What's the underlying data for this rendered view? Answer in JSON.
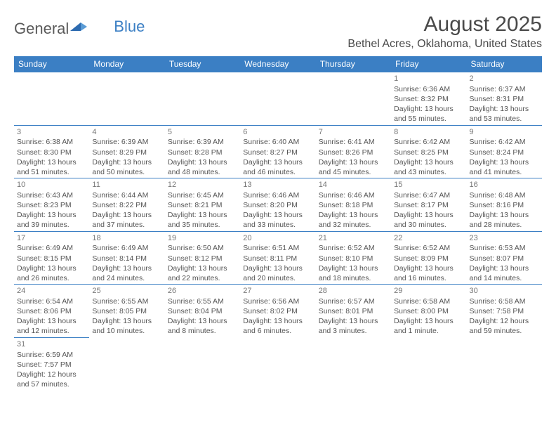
{
  "logo": {
    "general": "General",
    "blue": "Blue"
  },
  "title": "August 2025",
  "location": "Bethel Acres, Oklahoma, United States",
  "colors": {
    "header_bg": "#3b7fc4",
    "header_text": "#ffffff",
    "border": "#3b7fc4",
    "text": "#555555",
    "title_text": "#4a4a4a"
  },
  "weekdays": [
    "Sunday",
    "Monday",
    "Tuesday",
    "Wednesday",
    "Thursday",
    "Friday",
    "Saturday"
  ],
  "weeks": [
    [
      null,
      null,
      null,
      null,
      null,
      {
        "d": "1",
        "rise": "Sunrise: 6:36 AM",
        "set": "Sunset: 8:32 PM",
        "dl1": "Daylight: 13 hours",
        "dl2": "and 55 minutes."
      },
      {
        "d": "2",
        "rise": "Sunrise: 6:37 AM",
        "set": "Sunset: 8:31 PM",
        "dl1": "Daylight: 13 hours",
        "dl2": "and 53 minutes."
      }
    ],
    [
      {
        "d": "3",
        "rise": "Sunrise: 6:38 AM",
        "set": "Sunset: 8:30 PM",
        "dl1": "Daylight: 13 hours",
        "dl2": "and 51 minutes."
      },
      {
        "d": "4",
        "rise": "Sunrise: 6:39 AM",
        "set": "Sunset: 8:29 PM",
        "dl1": "Daylight: 13 hours",
        "dl2": "and 50 minutes."
      },
      {
        "d": "5",
        "rise": "Sunrise: 6:39 AM",
        "set": "Sunset: 8:28 PM",
        "dl1": "Daylight: 13 hours",
        "dl2": "and 48 minutes."
      },
      {
        "d": "6",
        "rise": "Sunrise: 6:40 AM",
        "set": "Sunset: 8:27 PM",
        "dl1": "Daylight: 13 hours",
        "dl2": "and 46 minutes."
      },
      {
        "d": "7",
        "rise": "Sunrise: 6:41 AM",
        "set": "Sunset: 8:26 PM",
        "dl1": "Daylight: 13 hours",
        "dl2": "and 45 minutes."
      },
      {
        "d": "8",
        "rise": "Sunrise: 6:42 AM",
        "set": "Sunset: 8:25 PM",
        "dl1": "Daylight: 13 hours",
        "dl2": "and 43 minutes."
      },
      {
        "d": "9",
        "rise": "Sunrise: 6:42 AM",
        "set": "Sunset: 8:24 PM",
        "dl1": "Daylight: 13 hours",
        "dl2": "and 41 minutes."
      }
    ],
    [
      {
        "d": "10",
        "rise": "Sunrise: 6:43 AM",
        "set": "Sunset: 8:23 PM",
        "dl1": "Daylight: 13 hours",
        "dl2": "and 39 minutes."
      },
      {
        "d": "11",
        "rise": "Sunrise: 6:44 AM",
        "set": "Sunset: 8:22 PM",
        "dl1": "Daylight: 13 hours",
        "dl2": "and 37 minutes."
      },
      {
        "d": "12",
        "rise": "Sunrise: 6:45 AM",
        "set": "Sunset: 8:21 PM",
        "dl1": "Daylight: 13 hours",
        "dl2": "and 35 minutes."
      },
      {
        "d": "13",
        "rise": "Sunrise: 6:46 AM",
        "set": "Sunset: 8:20 PM",
        "dl1": "Daylight: 13 hours",
        "dl2": "and 33 minutes."
      },
      {
        "d": "14",
        "rise": "Sunrise: 6:46 AM",
        "set": "Sunset: 8:18 PM",
        "dl1": "Daylight: 13 hours",
        "dl2": "and 32 minutes."
      },
      {
        "d": "15",
        "rise": "Sunrise: 6:47 AM",
        "set": "Sunset: 8:17 PM",
        "dl1": "Daylight: 13 hours",
        "dl2": "and 30 minutes."
      },
      {
        "d": "16",
        "rise": "Sunrise: 6:48 AM",
        "set": "Sunset: 8:16 PM",
        "dl1": "Daylight: 13 hours",
        "dl2": "and 28 minutes."
      }
    ],
    [
      {
        "d": "17",
        "rise": "Sunrise: 6:49 AM",
        "set": "Sunset: 8:15 PM",
        "dl1": "Daylight: 13 hours",
        "dl2": "and 26 minutes."
      },
      {
        "d": "18",
        "rise": "Sunrise: 6:49 AM",
        "set": "Sunset: 8:14 PM",
        "dl1": "Daylight: 13 hours",
        "dl2": "and 24 minutes."
      },
      {
        "d": "19",
        "rise": "Sunrise: 6:50 AM",
        "set": "Sunset: 8:12 PM",
        "dl1": "Daylight: 13 hours",
        "dl2": "and 22 minutes."
      },
      {
        "d": "20",
        "rise": "Sunrise: 6:51 AM",
        "set": "Sunset: 8:11 PM",
        "dl1": "Daylight: 13 hours",
        "dl2": "and 20 minutes."
      },
      {
        "d": "21",
        "rise": "Sunrise: 6:52 AM",
        "set": "Sunset: 8:10 PM",
        "dl1": "Daylight: 13 hours",
        "dl2": "and 18 minutes."
      },
      {
        "d": "22",
        "rise": "Sunrise: 6:52 AM",
        "set": "Sunset: 8:09 PM",
        "dl1": "Daylight: 13 hours",
        "dl2": "and 16 minutes."
      },
      {
        "d": "23",
        "rise": "Sunrise: 6:53 AM",
        "set": "Sunset: 8:07 PM",
        "dl1": "Daylight: 13 hours",
        "dl2": "and 14 minutes."
      }
    ],
    [
      {
        "d": "24",
        "rise": "Sunrise: 6:54 AM",
        "set": "Sunset: 8:06 PM",
        "dl1": "Daylight: 13 hours",
        "dl2": "and 12 minutes."
      },
      {
        "d": "25",
        "rise": "Sunrise: 6:55 AM",
        "set": "Sunset: 8:05 PM",
        "dl1": "Daylight: 13 hours",
        "dl2": "and 10 minutes."
      },
      {
        "d": "26",
        "rise": "Sunrise: 6:55 AM",
        "set": "Sunset: 8:04 PM",
        "dl1": "Daylight: 13 hours",
        "dl2": "and 8 minutes."
      },
      {
        "d": "27",
        "rise": "Sunrise: 6:56 AM",
        "set": "Sunset: 8:02 PM",
        "dl1": "Daylight: 13 hours",
        "dl2": "and 6 minutes."
      },
      {
        "d": "28",
        "rise": "Sunrise: 6:57 AM",
        "set": "Sunset: 8:01 PM",
        "dl1": "Daylight: 13 hours",
        "dl2": "and 3 minutes."
      },
      {
        "d": "29",
        "rise": "Sunrise: 6:58 AM",
        "set": "Sunset: 8:00 PM",
        "dl1": "Daylight: 13 hours",
        "dl2": "and 1 minute."
      },
      {
        "d": "30",
        "rise": "Sunrise: 6:58 AM",
        "set": "Sunset: 7:58 PM",
        "dl1": "Daylight: 12 hours",
        "dl2": "and 59 minutes."
      }
    ],
    [
      {
        "d": "31",
        "rise": "Sunrise: 6:59 AM",
        "set": "Sunset: 7:57 PM",
        "dl1": "Daylight: 12 hours",
        "dl2": "and 57 minutes."
      },
      null,
      null,
      null,
      null,
      null,
      null
    ]
  ]
}
